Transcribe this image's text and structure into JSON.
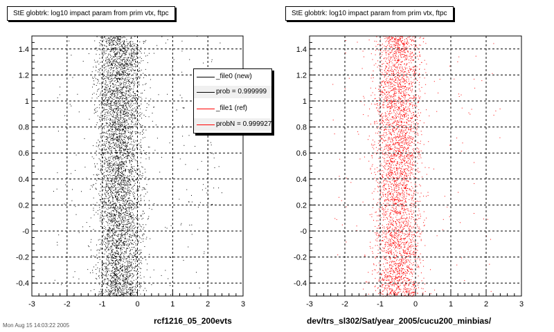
{
  "panels": [
    {
      "title": "StE globtrk: log10 impact param from prim vtx, ftpc",
      "xlabel": "rcf1216_05_200evts",
      "color": "#000000"
    },
    {
      "title": "StE globtrk: log10 impact param from prim vtx, ftpc",
      "xlabel": "dev/trs_sl302/Sat/year_2005/cucu200_minbias/",
      "color": "#ff0000"
    }
  ],
  "legend": {
    "entries": [
      {
        "label": "_file0 (new)",
        "color": "#000000"
      },
      {
        "label": "prob = 0.999999",
        "color": "#000000"
      },
      {
        "label": "_file1 (ref)",
        "color": "#ff0000"
      },
      {
        "label": "probN = 0.999927",
        "color": "#ff0000"
      }
    ]
  },
  "footer": "Mon Aug 15 14:03:22 2005",
  "chart_data": [
    {
      "type": "scatter",
      "title": "StE globtrk: log10 impact param from prim vtx, ftpc",
      "xlabel": "rcf1216_05_200evts",
      "ylabel": "",
      "xlim": [
        -3,
        3
      ],
      "ylim": [
        -0.5,
        1.5
      ],
      "xticks": [
        "-3",
        "-2",
        "-1",
        "0",
        "1",
        "2",
        "3"
      ],
      "yticks": [
        "-0.4",
        "-0.2",
        "-0",
        "0.2",
        "0.4",
        "0.6",
        "0.8",
        "1",
        "1.2",
        "1.4"
      ],
      "grid": true,
      "series": [
        {
          "name": "_file0 (new)",
          "color": "#000000",
          "x_center": -0.5,
          "x_spread": 0.6,
          "points": 5000
        }
      ]
    },
    {
      "type": "scatter",
      "title": "StE globtrk: log10 impact param from prim vtx, ftpc",
      "xlabel": "dev/trs_sl302/Sat/year_2005/cucu200_minbias/",
      "ylabel": "",
      "xlim": [
        -3,
        3
      ],
      "ylim": [
        -0.5,
        1.5
      ],
      "xticks": [
        "-3",
        "-2",
        "-1",
        "0",
        "1",
        "2",
        "3"
      ],
      "yticks": [
        "-0.4",
        "-0.2",
        "-0",
        "0.2",
        "0.4",
        "0.6",
        "0.8",
        "1",
        "1.2",
        "1.4"
      ],
      "grid": true,
      "series": [
        {
          "name": "_file1 (ref)",
          "color": "#ff0000",
          "x_center": -0.5,
          "x_spread": 0.6,
          "points": 4000
        }
      ]
    }
  ]
}
